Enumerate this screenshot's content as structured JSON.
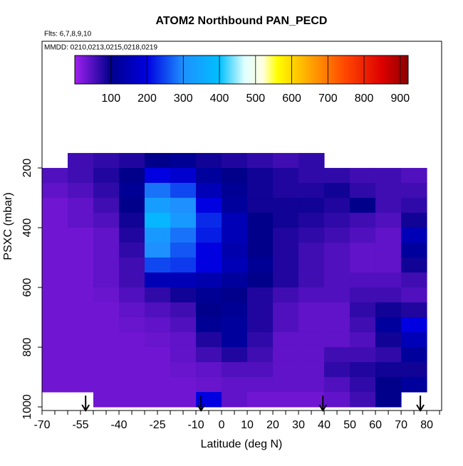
{
  "chart_data": {
    "type": "heatmap",
    "title": "ATOM2 Northbound PAN_PECD",
    "subtitle": "Flts: 6,7,8,9,10",
    "annotation": "MMDD: 0210,0213,0215,0218,0219",
    "xlabel": "Latitude (deg N)",
    "ylabel": "PSXC (mbar)",
    "x": [
      -65,
      -55,
      -45,
      -35,
      -25,
      -15,
      -5,
      5,
      15,
      25,
      35,
      45,
      55,
      65,
      75
    ],
    "x_width": 10,
    "y": [
      175,
      225,
      275,
      325,
      375,
      425,
      475,
      525,
      575,
      625,
      675,
      725,
      775,
      825,
      875,
      925,
      975
    ],
    "y_height": 50,
    "z": [
      [
        null,
        60,
        70,
        80,
        100,
        110,
        90,
        80,
        70,
        60,
        70,
        null,
        null,
        null,
        null
      ],
      [
        50,
        60,
        80,
        100,
        200,
        180,
        120,
        100,
        90,
        80,
        70,
        70,
        60,
        60,
        50
      ],
      [
        40,
        50,
        70,
        110,
        280,
        250,
        150,
        110,
        90,
        80,
        80,
        90,
        70,
        60,
        60
      ],
      [
        30,
        40,
        60,
        100,
        330,
        300,
        200,
        120,
        90,
        90,
        90,
        80,
        100,
        60,
        70
      ],
      [
        30,
        40,
        50,
        90,
        380,
        320,
        230,
        150,
        100,
        90,
        80,
        70,
        60,
        50,
        90
      ],
      [
        30,
        30,
        40,
        80,
        320,
        280,
        220,
        150,
        100,
        80,
        70,
        60,
        50,
        40,
        150
      ],
      [
        30,
        30,
        40,
        70,
        300,
        260,
        200,
        140,
        100,
        80,
        60,
        50,
        40,
        40,
        120
      ],
      [
        30,
        30,
        40,
        60,
        250,
        240,
        200,
        150,
        110,
        80,
        60,
        50,
        40,
        40,
        90
      ],
      [
        30,
        30,
        40,
        60,
        150,
        150,
        140,
        120,
        100,
        80,
        60,
        50,
        50,
        50,
        60
      ],
      [
        30,
        30,
        35,
        50,
        70,
        90,
        110,
        100,
        80,
        60,
        50,
        50,
        60,
        60,
        50
      ],
      [
        30,
        30,
        30,
        40,
        50,
        60,
        100,
        110,
        80,
        50,
        40,
        40,
        70,
        90,
        80
      ],
      [
        30,
        30,
        30,
        35,
        40,
        50,
        110,
        120,
        80,
        50,
        40,
        40,
        60,
        120,
        200
      ],
      [
        30,
        30,
        30,
        30,
        35,
        40,
        80,
        120,
        70,
        40,
        40,
        40,
        50,
        90,
        150
      ],
      [
        30,
        30,
        30,
        30,
        30,
        40,
        60,
        80,
        60,
        40,
        40,
        60,
        60,
        70,
        120
      ],
      [
        30,
        30,
        30,
        30,
        30,
        35,
        40,
        50,
        50,
        40,
        40,
        70,
        80,
        90,
        90
      ],
      [
        30,
        30,
        30,
        30,
        30,
        30,
        35,
        40,
        40,
        40,
        40,
        50,
        70,
        100,
        120
      ],
      [
        null,
        null,
        30,
        30,
        30,
        30,
        200,
        40,
        30,
        30,
        30,
        40,
        60,
        100,
        null
      ]
    ],
    "xlim": [
      -70,
      85.8
    ],
    "xticks": [
      -70,
      -55,
      -40,
      -25,
      -10,
      0,
      10,
      20,
      30,
      40,
      50,
      60,
      70,
      80
    ],
    "x_minor_ticks": [
      -65,
      -60,
      -50,
      -45,
      -35,
      -30,
      -20,
      -15,
      -5,
      5,
      15,
      25,
      35,
      45,
      55,
      65,
      75,
      85
    ],
    "ylim": [
      1012,
      -224
    ],
    "yticks": [
      200,
      400,
      600,
      800,
      1000
    ],
    "colorbar_lim": [
      0,
      922
    ],
    "colorbar_ticks": [
      100,
      200,
      300,
      400,
      500,
      600,
      700,
      800,
      900
    ],
    "colorscale": [
      [
        0,
        "#a020f0"
      ],
      [
        100,
        "#00008b"
      ],
      [
        200,
        "#0000e0"
      ],
      [
        300,
        "#1e90ff"
      ],
      [
        400,
        "#00bfff"
      ],
      [
        470,
        "#e0ffff"
      ],
      [
        520,
        "#ffffe0"
      ],
      [
        560,
        "#ffff00"
      ],
      [
        650,
        "#ffa500"
      ],
      [
        750,
        "#ff4500"
      ],
      [
        850,
        "#dd0000"
      ],
      [
        922,
        "#8b0000"
      ]
    ],
    "flight_markers": [
      -53,
      -8,
      39.5,
      77.5
    ]
  }
}
